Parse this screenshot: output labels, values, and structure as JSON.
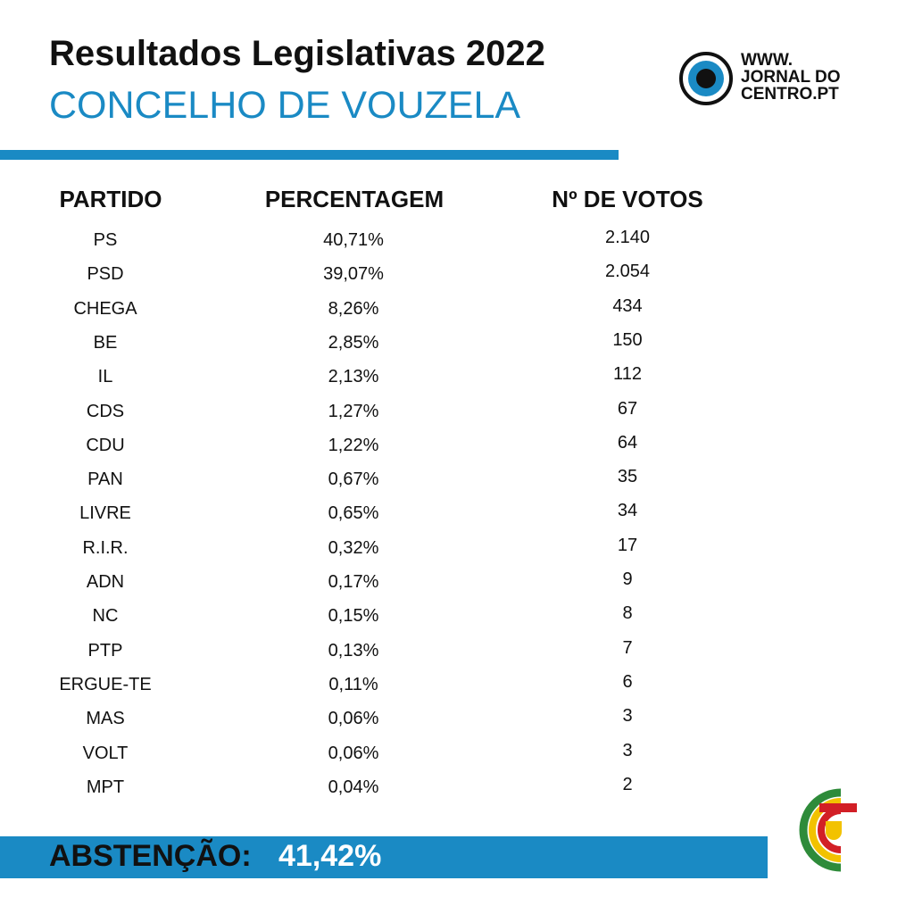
{
  "header": {
    "title": "Resultados Legislativas 2022",
    "subtitle": "CONCELHO DE VOUZELA"
  },
  "logo": {
    "lines": [
      "WWW.",
      "JORNAL DO",
      "CENTRO.PT"
    ]
  },
  "table": {
    "headers": [
      "PARTIDO",
      "PERCENTAGEM",
      "Nº DE VOTOS"
    ],
    "rows": [
      [
        "PS",
        "40,71%",
        "2.140"
      ],
      [
        "PSD",
        "39,07%",
        "2.054"
      ],
      [
        "CHEGA",
        "8,26%",
        "434"
      ],
      [
        "BE",
        "2,85%",
        "150"
      ],
      [
        "IL",
        "2,13%",
        "112"
      ],
      [
        "CDS",
        "1,27%",
        "67"
      ],
      [
        "CDU",
        "1,22%",
        "64"
      ],
      [
        "PAN",
        "0,67%",
        "35"
      ],
      [
        "LIVRE",
        "0,65%",
        "34"
      ],
      [
        "R.I.R.",
        "0,32%",
        "17"
      ],
      [
        "ADN",
        "0,17%",
        "9"
      ],
      [
        "NC",
        "0,15%",
        "8"
      ],
      [
        "PTP",
        "0,13%",
        "7"
      ],
      [
        "ERGUE-TE",
        "0,11%",
        "6"
      ],
      [
        "MAS",
        "0,06%",
        "3"
      ],
      [
        "VOLT",
        "0,06%",
        "3"
      ],
      [
        "MPT",
        "0,04%",
        "2"
      ]
    ]
  },
  "footer": {
    "label": "ABSTENÇÃO:",
    "value": "41,42%"
  }
}
